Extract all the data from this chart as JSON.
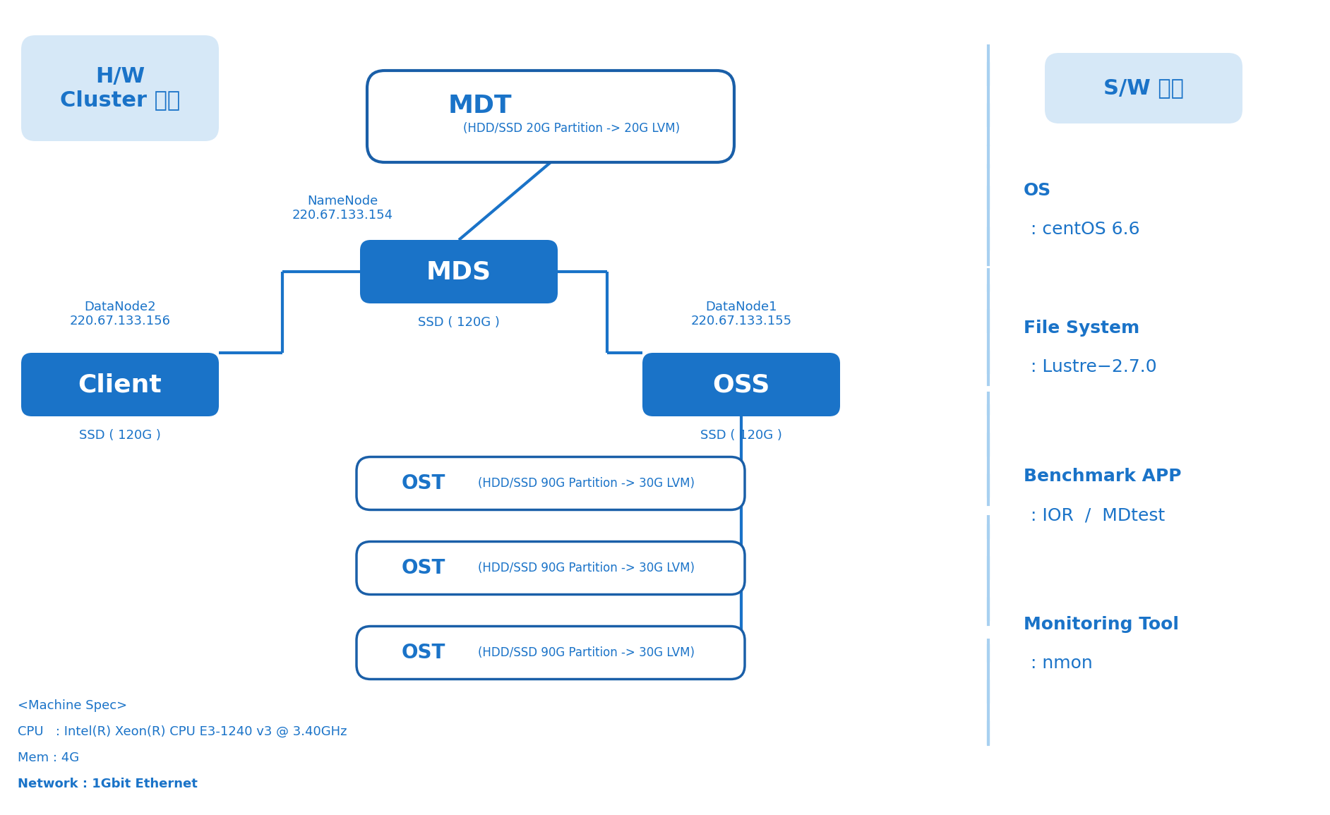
{
  "bg_color": "#ffffff",
  "blue_dark": "#1a73c8",
  "blue_mid": "#2980d9",
  "blue_light": "#d6e8f7",
  "blue_border": "#1a5fa8",
  "blue_text": "#1a73c8",
  "dashed_line_color": "#a8d0f0",
  "hw_title": "H/W\nCluster 환경",
  "sw_title": "S/W 환경",
  "mdt_label": "MDT",
  "mdt_sub": "(HDD/SSD 20G Partition -> 20G LVM)",
  "mds_label": "MDS",
  "mds_sub": "SSD ( 120G )",
  "namenode_label": "NameNode\n220.67.133.154",
  "client_label": "Client",
  "client_sub": "SSD ( 120G )",
  "datanode2_label": "DataNode2\n220.67.133.156",
  "oss_label": "OSS",
  "oss_sub": "SSD ( 120G )",
  "datanode1_label": "DataNode1\n220.67.133.155",
  "ost_label": "OST",
  "ost_sub": "(HDD/SSD 90G Partition -> 30G LVM)",
  "sw_items": [
    [
      "OS",
      ": centOS 6.6"
    ],
    [
      "File System",
      ": Lustre−2.7.0"
    ],
    [
      "Benchmark APP",
      ": IOR  /  MDtest"
    ],
    [
      "Monitoring Tool",
      ": nmon"
    ]
  ],
  "machine_spec": [
    "<Machine Spec>",
    "CPU   : Intel(R) Xeon(R) CPU E3-1240 v3 @ 3.40GHz",
    "Mem : 4G",
    "Network : 1Gbit Ethernet"
  ]
}
